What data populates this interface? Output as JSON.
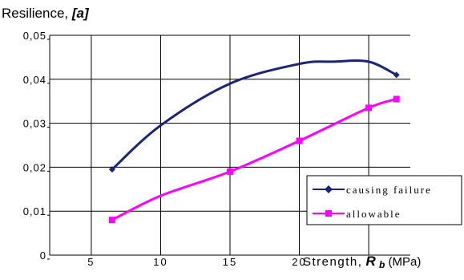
{
  "chart_data": {
    "type": "line",
    "title": "Resilience,",
    "title_symbol": "[a]",
    "xlabel": "Strength,",
    "xlabel_symbol": "R",
    "xlabel_subscript": "b",
    "xlabel_unit": "(MPa)",
    "xlim": [
      2,
      28
    ],
    "ylim": [
      0,
      0.05
    ],
    "x_tick_labels": [
      "5",
      "10",
      "15",
      "20"
    ],
    "x_tick_values": [
      5,
      10,
      15,
      20
    ],
    "y_tick_labels": [
      "0",
      "0,01",
      "0,02",
      "0,03",
      "0,04",
      "0,05"
    ],
    "y_tick_values": [
      0,
      0.01,
      0.02,
      0.03,
      0.04,
      0.05
    ],
    "grid": true,
    "legend_position": "bottom-right",
    "series": [
      {
        "name": "causing failure",
        "color": "#1a237e",
        "marker": "diamond",
        "x": [
          6.5,
          10,
          15,
          20,
          22.5,
          25,
          27
        ],
        "y": [
          0.0195,
          0.0295,
          0.039,
          0.0435,
          0.044,
          0.044,
          0.041
        ],
        "marker_x": [
          6.5,
          27
        ]
      },
      {
        "name": "allowable",
        "color": "#ff00ff",
        "marker": "square",
        "x": [
          6.5,
          10,
          15,
          20,
          25,
          27
        ],
        "y": [
          0.008,
          0.0135,
          0.019,
          0.026,
          0.0335,
          0.0355
        ],
        "marker_x": [
          6.5,
          15,
          20,
          25,
          27
        ]
      }
    ]
  }
}
